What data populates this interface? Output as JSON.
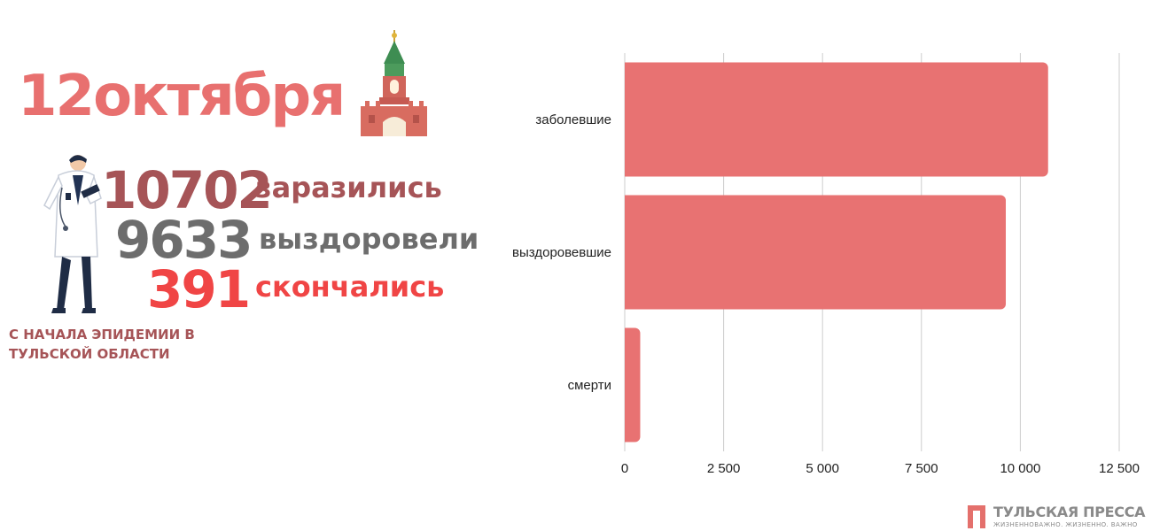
{
  "header": {
    "date": "12октября"
  },
  "stats": [
    {
      "number": "10702",
      "label": "заразились",
      "color": "#a65457"
    },
    {
      "number": "9633",
      "label": "выздоровели",
      "color": "#6d6d6d"
    },
    {
      "number": "391",
      "label": "скончались",
      "color": "#f04545"
    }
  ],
  "caption": {
    "line1": "С НАЧАЛА ЭПИДЕМИИ В",
    "line2": "ТУЛЬСКОЙ ОБЛАСТИ"
  },
  "chart_data": {
    "type": "bar",
    "orientation": "horizontal",
    "categories": [
      "заболевшие",
      "выздоровевшие",
      "смерти"
    ],
    "values": [
      10702,
      9633,
      391
    ],
    "xlim": [
      0,
      12500
    ],
    "xticks": [
      0,
      2500,
      5000,
      7500,
      10000,
      12500
    ],
    "xtick_labels": [
      "0",
      "2 500",
      "5 000",
      "7 500",
      "10 000",
      "12 500"
    ],
    "grid": "vertical",
    "bar_color": "#e87272"
  },
  "footer": {
    "brand": "ТУЛЬСКАЯ ПРЕССА",
    "tagline": "ЖИЗНЕННОВАЖНО. ЖИЗНЕННО. ВАЖНО"
  },
  "icons": [
    "kremlin-tower-icon",
    "doctor-illustration",
    "tulskaya-pressa-logo-icon"
  ]
}
